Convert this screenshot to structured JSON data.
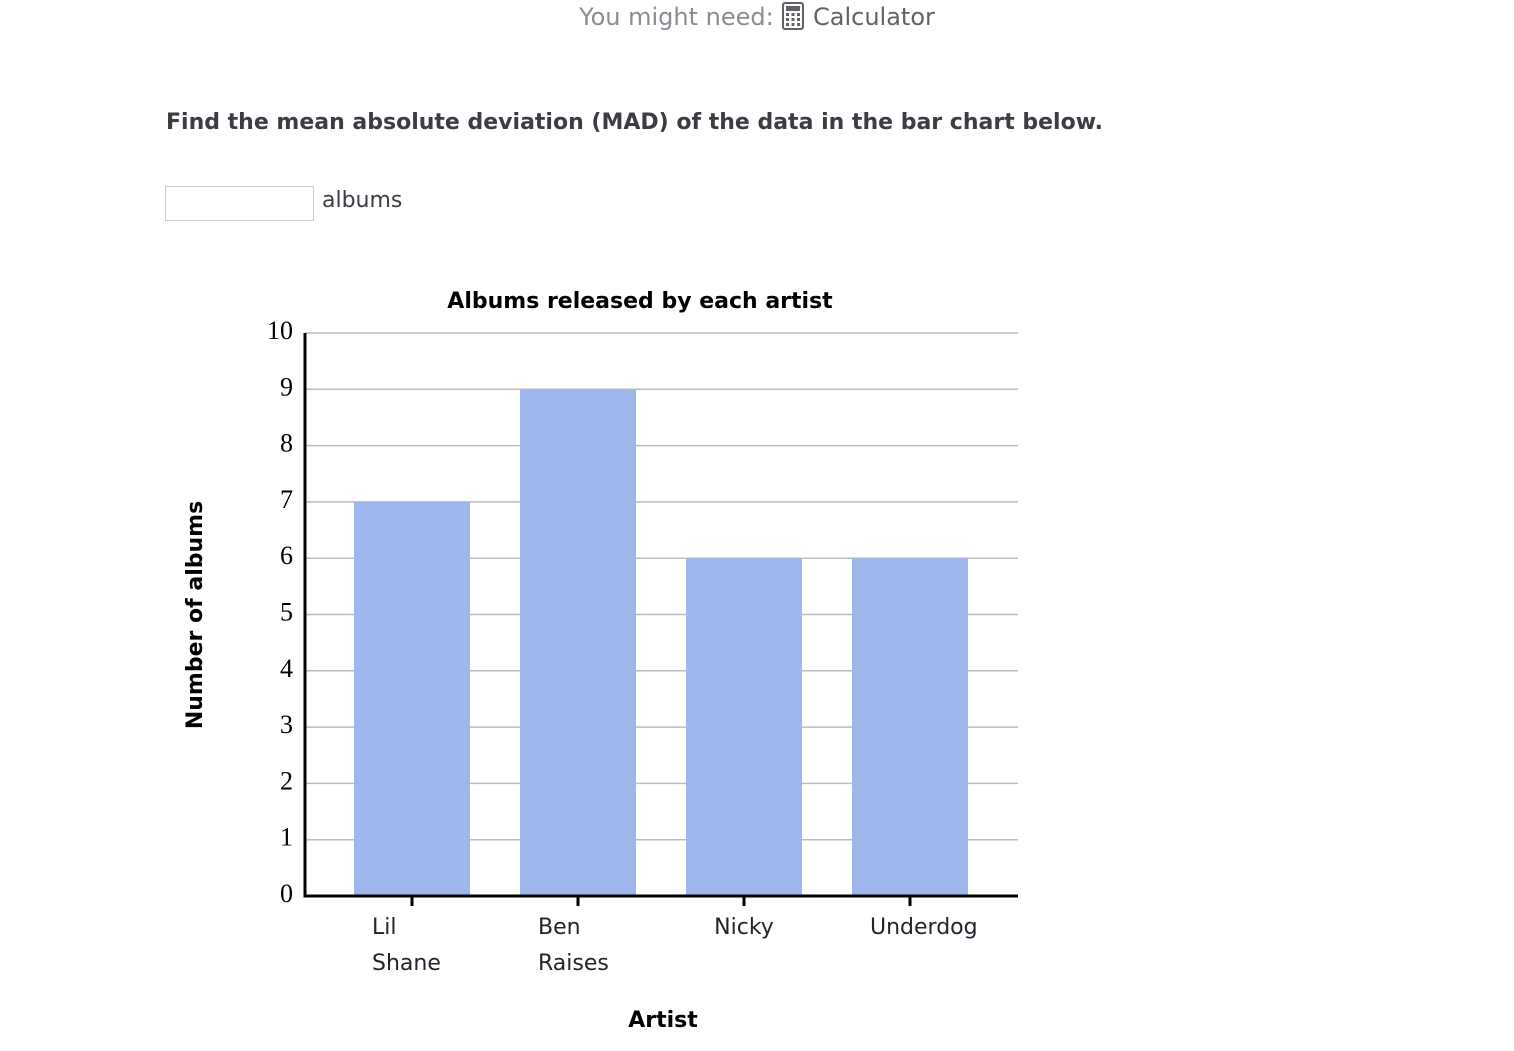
{
  "header": {
    "prompt": "You might need:",
    "tool": "Calculator"
  },
  "question": "Find the mean absolute deviation (MAD) of the data in the bar chart below.",
  "answer_unit": "albums",
  "chart_data": {
    "type": "bar",
    "title": "Albums released by each artist",
    "x_label": "Artist",
    "y_label": "Number of albums",
    "categories": [
      "Lil Shane",
      "Ben Raises",
      "Nicky",
      "Underdog"
    ],
    "values": [
      7,
      9,
      6,
      6
    ],
    "color": "#9db6ec",
    "ylim": [
      0,
      10
    ],
    "yticks": [
      0,
      1,
      2,
      3,
      4,
      5,
      6,
      7,
      8,
      9,
      10
    ],
    "grid": true
  }
}
